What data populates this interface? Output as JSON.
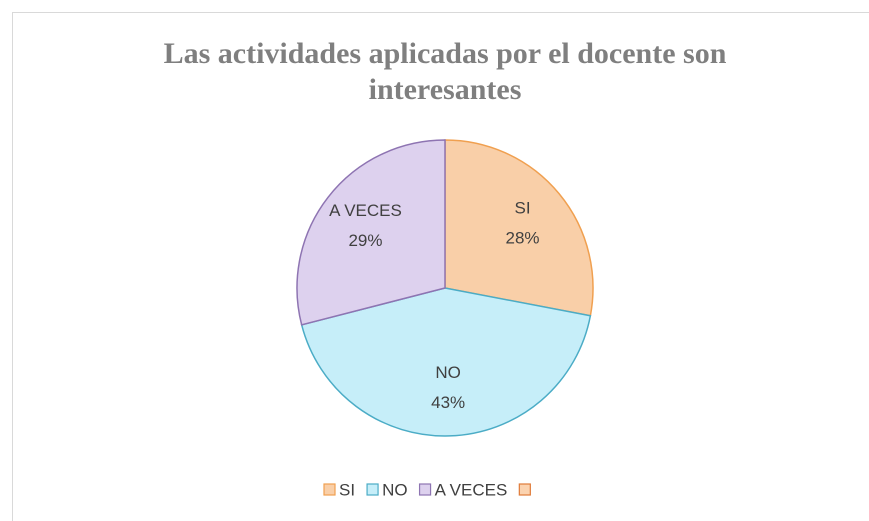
{
  "chart_data": {
    "type": "pie",
    "title": "Las actividades aplicadas por el docente son interesantes",
    "categories": [
      "SI",
      "NO",
      "A VECES",
      null
    ],
    "values": [
      28,
      43,
      29,
      0
    ],
    "value_labels": [
      "28%",
      "43%",
      "29%",
      null
    ],
    "colors": [
      "#f9cfa8",
      "#c6eef9",
      "#ddd1ee",
      "#fbd3b0"
    ],
    "stroke_colors": [
      "#f0a050",
      "#4bacc6",
      "#8e74b2",
      "#e07b39"
    ],
    "legend": "bottom"
  }
}
